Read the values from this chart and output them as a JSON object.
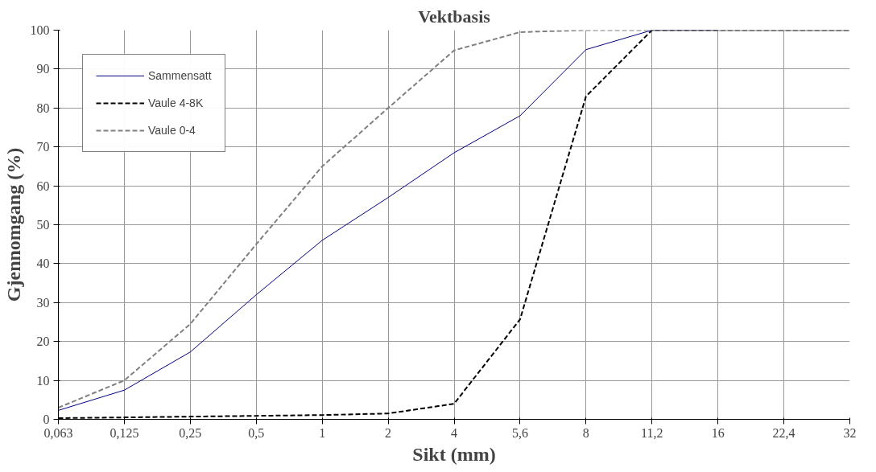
{
  "chart_data": {
    "type": "line",
    "title": "Vektbasis",
    "xlabel": "Sikt (mm)",
    "ylabel": "Gjennomgang (%)",
    "categories": [
      "0,063",
      "0,125",
      "0,25",
      "0,5",
      "1",
      "2",
      "4",
      "5,6",
      "8",
      "11,2",
      "16",
      "22,4",
      "32"
    ],
    "series": [
      {
        "name": "Sammensatt",
        "color": "#000080",
        "line_style": "solid",
        "values": [
          2.3,
          7.5,
          17.3,
          32,
          46,
          57,
          68.5,
          78,
          95,
          100,
          100,
          null,
          null
        ]
      },
      {
        "name": "Vaule 4-8K",
        "color": "#000000",
        "line_style": "dashed",
        "values": [
          0.3,
          0.5,
          0.7,
          0.9,
          1.1,
          1.5,
          4,
          25.7,
          83,
          100,
          100,
          100,
          100
        ]
      },
      {
        "name": "Vaule 0-4",
        "color": "#808080",
        "line_style": "dashed",
        "values": [
          3,
          10,
          24.5,
          45,
          65,
          80,
          94.8,
          99.5,
          100,
          100,
          100,
          100,
          100
        ]
      }
    ],
    "ylim": [
      0,
      100
    ],
    "yticks": [
      0,
      10,
      20,
      30,
      40,
      50,
      60,
      70,
      80,
      90,
      100
    ],
    "grid": true,
    "legend": "top left",
    "marker": "none"
  }
}
